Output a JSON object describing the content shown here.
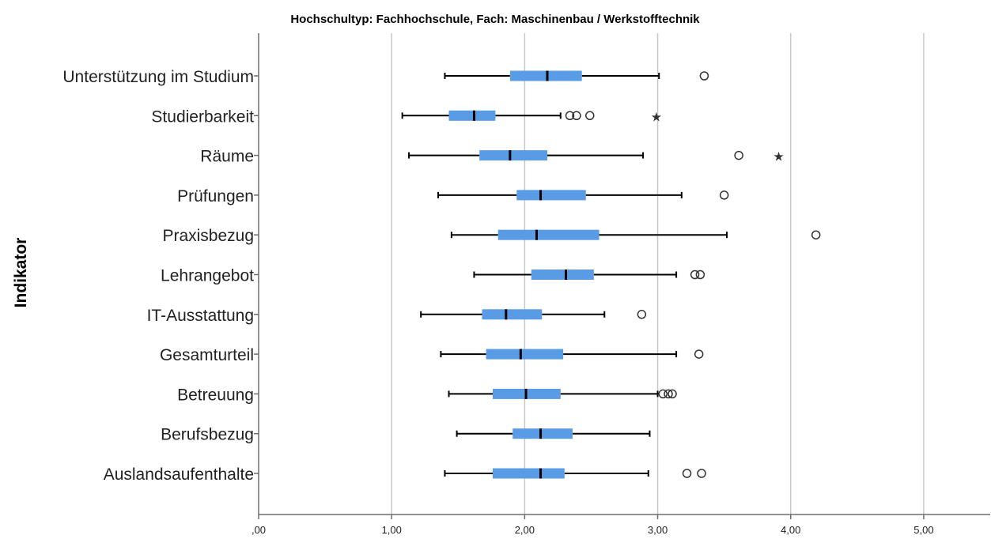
{
  "chart_data": {
    "type": "boxplot",
    "title": "Hochschultyp: Fachhochschule, Fach: Maschinenbau / Werkstofftechnik",
    "xlabel": "",
    "ylabel": "Indikator",
    "xlim": [
      0,
      5.5
    ],
    "xticks": [
      0,
      1,
      2,
      3,
      4,
      5
    ],
    "xtick_labels": [
      ",00",
      "1,00",
      "2,00",
      "3,00",
      "4,00",
      "5,00"
    ],
    "grid": "vertical",
    "colors": {
      "box": "#5a9be6",
      "median": "#000000",
      "whisker": "#000000",
      "grid": "#c8c8c8",
      "axis": "#6e6e6e"
    },
    "categories": [
      "Unterstützung im Studium",
      "Studierbarkeit",
      "Räume",
      "Prüfungen",
      "Praxisbezug",
      "Lehrangebot",
      "IT-Ausstattung",
      "Gesamturteil",
      "Betreuung",
      "Berufsbezug",
      "Auslandsaufenthalte"
    ],
    "boxes": [
      {
        "min": 1.4,
        "q1": 1.89,
        "median": 2.17,
        "q3": 2.43,
        "max": 3.01,
        "outliers": [
          3.35
        ],
        "extremes": []
      },
      {
        "min": 1.08,
        "q1": 1.43,
        "median": 1.62,
        "q3": 1.78,
        "max": 2.27,
        "outliers": [
          2.34,
          2.39,
          2.49
        ],
        "extremes": [
          2.99
        ]
      },
      {
        "min": 1.13,
        "q1": 1.66,
        "median": 1.89,
        "q3": 2.17,
        "max": 2.89,
        "outliers": [
          3.61
        ],
        "extremes": [
          3.91
        ]
      },
      {
        "min": 1.35,
        "q1": 1.94,
        "median": 2.12,
        "q3": 2.46,
        "max": 3.18,
        "outliers": [
          3.5
        ],
        "extremes": []
      },
      {
        "min": 1.45,
        "q1": 1.8,
        "median": 2.09,
        "q3": 2.56,
        "max": 3.52,
        "outliers": [
          4.19
        ],
        "extremes": []
      },
      {
        "min": 1.62,
        "q1": 2.05,
        "median": 2.31,
        "q3": 2.52,
        "max": 3.14,
        "outliers": [
          3.28,
          3.32
        ],
        "extremes": []
      },
      {
        "min": 1.22,
        "q1": 1.68,
        "median": 1.86,
        "q3": 2.13,
        "max": 2.6,
        "outliers": [
          2.88
        ],
        "extremes": []
      },
      {
        "min": 1.37,
        "q1": 1.71,
        "median": 1.97,
        "q3": 2.29,
        "max": 3.14,
        "outliers": [
          3.31
        ],
        "extremes": []
      },
      {
        "min": 1.43,
        "q1": 1.76,
        "median": 2.01,
        "q3": 2.27,
        "max": 3.0,
        "outliers": [
          3.04,
          3.08,
          3.11
        ],
        "extremes": []
      },
      {
        "min": 1.49,
        "q1": 1.91,
        "median": 2.12,
        "q3": 2.36,
        "max": 2.94,
        "outliers": [],
        "extremes": []
      },
      {
        "min": 1.4,
        "q1": 1.76,
        "median": 2.12,
        "q3": 2.3,
        "max": 2.93,
        "outliers": [
          3.22,
          3.33
        ],
        "extremes": []
      }
    ]
  }
}
